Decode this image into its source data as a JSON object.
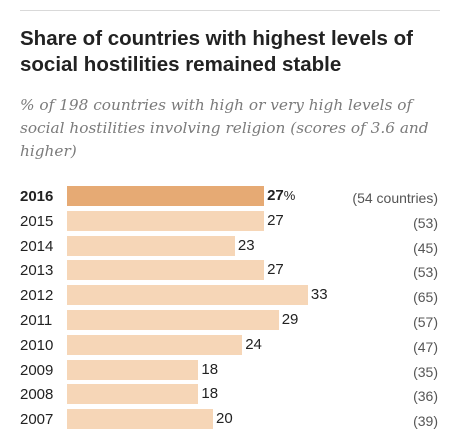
{
  "title": "Share of countries with highest levels of social hostilities remained stable",
  "subtitle": "% of 198 countries with high or very high levels of social hostilities involving religion (scores of 3.6 and higher)",
  "colors": {
    "bar": "#f6d6b7",
    "highlight": "#e6aa74"
  },
  "chart_data": {
    "type": "bar",
    "orientation": "horizontal",
    "categories": [
      "2016",
      "2015",
      "2014",
      "2013",
      "2012",
      "2011",
      "2010",
      "2009",
      "2008",
      "2007"
    ],
    "values": [
      27,
      27,
      23,
      27,
      33,
      29,
      24,
      18,
      18,
      20
    ],
    "value_labels": [
      "27",
      "27",
      "23",
      "27",
      "33",
      "29",
      "24",
      "18",
      "18",
      "20"
    ],
    "value_suffix_first": "%",
    "country_counts": [
      "(54 countries)",
      "(53)",
      "(45)",
      "(53)",
      "(65)",
      "(57)",
      "(47)",
      "(35)",
      "(36)",
      "(39)"
    ],
    "highlighted_category": "2016",
    "xlim": [
      0,
      40
    ],
    "grid": false,
    "legend": "none"
  }
}
